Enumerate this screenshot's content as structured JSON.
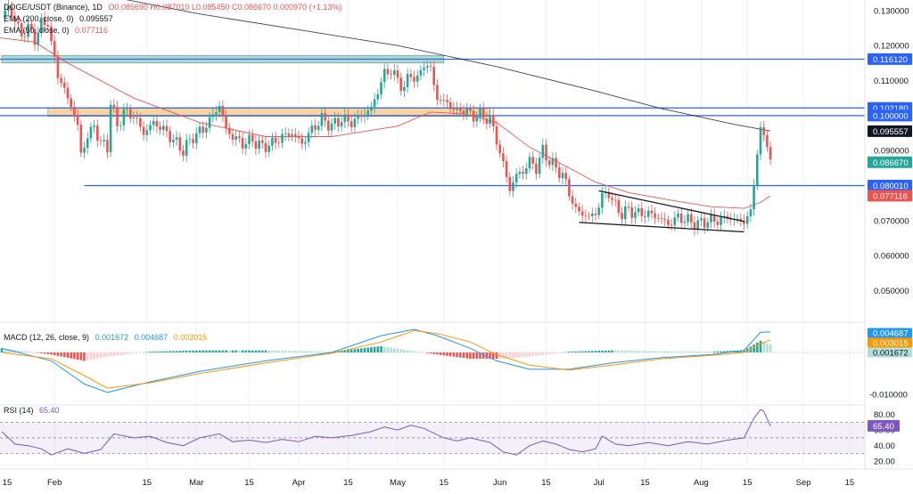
{
  "header": {
    "symbol": "DOGE/USDT (Binance), 1D",
    "ohlc": "O0.085690  H0.087010  L0.085450  C0.086670  0.000970 (+1.13%)",
    "ema200_label": "EMA (200, close, 0)",
    "ema200_value": "0.095557",
    "ema50_label": "EMA (50, close, 0)",
    "ema50_value": "0.077116"
  },
  "macd": {
    "label": "MACD (12, 26, close, 9)",
    "v1": "0.001672",
    "v2": "0.004687",
    "v3": "0.003015"
  },
  "rsi": {
    "label": "RSI (14)",
    "value": "65.40"
  },
  "colors": {
    "up": "#26a69a",
    "down": "#ef5350",
    "level": "#2962ff",
    "ema200": "#131722",
    "ema50": "#ef5350",
    "macd": "#2196f3",
    "signal": "#ff9800",
    "rsi": "#7e57c2",
    "zone_orange": "#f7c57c",
    "zone_teal": "#8fcdc3"
  },
  "chart_data": {
    "type": "candlestick",
    "x_ticks": [
      "15",
      "Feb",
      "15",
      "Mar",
      "15",
      "Apr",
      "15",
      "May",
      "15",
      "Jun",
      "15",
      "Jul",
      "15",
      "Aug",
      "15",
      "Sep",
      "15"
    ],
    "price_ticks": [
      "0.130000",
      "0.120000",
      "0.110000",
      "0.100000",
      "0.090000",
      "0.080000",
      "0.070000",
      "0.060000",
      "0.050000"
    ],
    "price_ylim": [
      0.041,
      0.133
    ],
    "levels": [
      {
        "value": 0.11612,
        "label": "0.116120"
      },
      {
        "value": 0.10218,
        "label": "0.102180"
      },
      {
        "value": 0.1,
        "label": "0.100000"
      },
      {
        "value": 0.08001,
        "label": "0.080010"
      }
    ],
    "badges": [
      {
        "label": "0.095557",
        "value": 0.095557,
        "color": "#131722"
      },
      {
        "label": "0.086670",
        "value": 0.08667,
        "color": "#26a69a"
      },
      {
        "label": "0.077116",
        "value": 0.077116,
        "color": "#ef5350"
      }
    ],
    "zones": [
      {
        "from_day": 0,
        "to_day": 134,
        "low": 0.115,
        "high": 0.1172,
        "color": "#8fcdc3"
      },
      {
        "from_day": 14,
        "to_day": 148,
        "low": 0.0998,
        "high": 0.1021,
        "color": "#f7c57c"
      }
    ],
    "close_path": [
      [
        0,
        0.128
      ],
      [
        2,
        0.131
      ],
      [
        4,
        0.127
      ],
      [
        6,
        0.123
      ],
      [
        8,
        0.125
      ],
      [
        10,
        0.122
      ],
      [
        12,
        0.126
      ],
      [
        14,
        0.127
      ],
      [
        15,
        0.12
      ],
      [
        17,
        0.112
      ],
      [
        19,
        0.107
      ],
      [
        21,
        0.103
      ],
      [
        23,
        0.097
      ],
      [
        24,
        0.089
      ],
      [
        26,
        0.094
      ],
      [
        28,
        0.097
      ],
      [
        30,
        0.092
      ],
      [
        32,
        0.091
      ],
      [
        33,
        0.104
      ],
      [
        35,
        0.097
      ],
      [
        37,
        0.101
      ],
      [
        40,
        0.1
      ],
      [
        43,
        0.095
      ],
      [
        46,
        0.098
      ],
      [
        49,
        0.096
      ],
      [
        52,
        0.093
      ],
      [
        55,
        0.09
      ],
      [
        58,
        0.094
      ],
      [
        61,
        0.096
      ],
      [
        64,
        0.1
      ],
      [
        66,
        0.103
      ],
      [
        68,
        0.096
      ],
      [
        70,
        0.094
      ],
      [
        73,
        0.092
      ],
      [
        76,
        0.093
      ],
      [
        79,
        0.091
      ],
      [
        82,
        0.092
      ],
      [
        85,
        0.094
      ],
      [
        88,
        0.095
      ],
      [
        91,
        0.092
      ],
      [
        94,
        0.096
      ],
      [
        97,
        0.099
      ],
      [
        100,
        0.097
      ],
      [
        103,
        0.099
      ],
      [
        106,
        0.098
      ],
      [
        109,
        0.1
      ],
      [
        112,
        0.102
      ],
      [
        114,
        0.107
      ],
      [
        116,
        0.112
      ],
      [
        118,
        0.113
      ],
      [
        120,
        0.11
      ],
      [
        122,
        0.108
      ],
      [
        124,
        0.112
      ],
      [
        126,
        0.11
      ],
      [
        128,
        0.115
      ],
      [
        130,
        0.113
      ],
      [
        132,
        0.105
      ],
      [
        134,
        0.104
      ],
      [
        136,
        0.103
      ],
      [
        138,
        0.101
      ],
      [
        140,
        0.102
      ],
      [
        142,
        0.1
      ],
      [
        145,
        0.1
      ],
      [
        148,
        0.099
      ],
      [
        150,
        0.093
      ],
      [
        152,
        0.086
      ],
      [
        154,
        0.079
      ],
      [
        156,
        0.083
      ],
      [
        158,
        0.084
      ],
      [
        160,
        0.087
      ],
      [
        162,
        0.085
      ],
      [
        164,
        0.09
      ],
      [
        166,
        0.087
      ],
      [
        168,
        0.085
      ],
      [
        170,
        0.083
      ],
      [
        172,
        0.078
      ],
      [
        174,
        0.073
      ],
      [
        176,
        0.072
      ],
      [
        178,
        0.071
      ],
      [
        180,
        0.072
      ],
      [
        182,
        0.077
      ],
      [
        184,
        0.078
      ],
      [
        186,
        0.074
      ],
      [
        188,
        0.072
      ],
      [
        190,
        0.073
      ],
      [
        193,
        0.072
      ],
      [
        196,
        0.072
      ],
      [
        199,
        0.071
      ],
      [
        202,
        0.069
      ],
      [
        205,
        0.071
      ],
      [
        208,
        0.07
      ],
      [
        211,
        0.069
      ],
      [
        214,
        0.07
      ],
      [
        217,
        0.07
      ],
      [
        220,
        0.071
      ],
      [
        223,
        0.07
      ],
      [
        225,
        0.07
      ],
      [
        227,
        0.072
      ],
      [
        228,
        0.081
      ],
      [
        229,
        0.09
      ],
      [
        230,
        0.095
      ],
      [
        231,
        0.094
      ],
      [
        232,
        0.093
      ],
      [
        233,
        0.087
      ]
    ],
    "ema200": [
      [
        -8,
        0.148
      ],
      [
        10,
        0.1385
      ],
      [
        30,
        0.1345
      ],
      [
        60,
        0.129
      ],
      [
        90,
        0.1245
      ],
      [
        120,
        0.12
      ],
      [
        150,
        0.114
      ],
      [
        180,
        0.107
      ],
      [
        200,
        0.102
      ],
      [
        222,
        0.0975
      ],
      [
        233,
        0.0956
      ]
    ],
    "ema50": [
      [
        -8,
        0.123
      ],
      [
        10,
        0.121
      ],
      [
        20,
        0.115
      ],
      [
        40,
        0.105
      ],
      [
        60,
        0.098
      ],
      [
        80,
        0.094
      ],
      [
        100,
        0.094
      ],
      [
        120,
        0.097
      ],
      [
        130,
        0.101
      ],
      [
        140,
        0.1005
      ],
      [
        150,
        0.098
      ],
      [
        160,
        0.091
      ],
      [
        170,
        0.086
      ],
      [
        180,
        0.081
      ],
      [
        190,
        0.078
      ],
      [
        205,
        0.0755
      ],
      [
        215,
        0.074
      ],
      [
        225,
        0.0735
      ],
      [
        230,
        0.0752
      ],
      [
        233,
        0.0771
      ]
    ],
    "channel_upper": [
      [
        181,
        0.0785
      ],
      [
        225,
        0.0698
      ]
    ],
    "channel_lower": [
      [
        175,
        0.0695
      ],
      [
        225,
        0.0668
      ]
    ],
    "macd_ticks": [
      "0.000000",
      "-0.010000"
    ],
    "macd_ylim": [
      -0.0125,
      0.0072
    ],
    "macd_line": [
      [
        0,
        0.001
      ],
      [
        15,
        -0.002
      ],
      [
        25,
        -0.0075
      ],
      [
        32,
        -0.0095
      ],
      [
        45,
        -0.007
      ],
      [
        60,
        -0.0045
      ],
      [
        80,
        -0.002
      ],
      [
        100,
        0.0
      ],
      [
        115,
        0.004
      ],
      [
        125,
        0.0055
      ],
      [
        132,
        0.004
      ],
      [
        142,
        0.001
      ],
      [
        150,
        -0.002
      ],
      [
        160,
        -0.004
      ],
      [
        172,
        -0.004
      ],
      [
        185,
        -0.0025
      ],
      [
        200,
        -0.0012
      ],
      [
        215,
        -0.0005
      ],
      [
        225,
        0.0005
      ],
      [
        230,
        0.0048
      ],
      [
        233,
        0.0049
      ]
    ],
    "signal_line": [
      [
        0,
        0.0
      ],
      [
        15,
        -0.0015
      ],
      [
        25,
        -0.0055
      ],
      [
        32,
        -0.0085
      ],
      [
        45,
        -0.0072
      ],
      [
        60,
        -0.005
      ],
      [
        80,
        -0.0025
      ],
      [
        100,
        -0.0002
      ],
      [
        115,
        0.0025
      ],
      [
        125,
        0.0052
      ],
      [
        132,
        0.0045
      ],
      [
        142,
        0.0025
      ],
      [
        150,
        -0.0005
      ],
      [
        160,
        -0.003
      ],
      [
        172,
        -0.0042
      ],
      [
        185,
        -0.003
      ],
      [
        200,
        -0.0015
      ],
      [
        215,
        -0.0007
      ],
      [
        225,
        0.0
      ],
      [
        230,
        0.002
      ],
      [
        233,
        0.003
      ]
    ],
    "rsi_ticks": [
      "80.00",
      "60.00",
      "40.00",
      "20.00"
    ],
    "rsi_ylim": [
      10,
      92
    ],
    "rsi_bands": [
      30,
      50,
      70
    ],
    "rsi_line": [
      [
        0,
        58
      ],
      [
        4,
        42
      ],
      [
        8,
        40
      ],
      [
        12,
        36
      ],
      [
        15,
        28
      ],
      [
        20,
        36
      ],
      [
        25,
        30
      ],
      [
        30,
        35
      ],
      [
        34,
        55
      ],
      [
        40,
        50
      ],
      [
        45,
        52
      ],
      [
        50,
        44
      ],
      [
        55,
        40
      ],
      [
        60,
        50
      ],
      [
        66,
        55
      ],
      [
        70,
        45
      ],
      [
        75,
        47
      ],
      [
        80,
        44
      ],
      [
        85,
        48
      ],
      [
        90,
        45
      ],
      [
        95,
        52
      ],
      [
        100,
        50
      ],
      [
        106,
        53
      ],
      [
        112,
        58
      ],
      [
        116,
        64
      ],
      [
        120,
        60
      ],
      [
        124,
        66
      ],
      [
        128,
        62
      ],
      [
        130,
        58
      ],
      [
        134,
        50
      ],
      [
        138,
        46
      ],
      [
        142,
        50
      ],
      [
        148,
        44
      ],
      [
        152,
        32
      ],
      [
        156,
        28
      ],
      [
        160,
        40
      ],
      [
        164,
        46
      ],
      [
        168,
        42
      ],
      [
        172,
        35
      ],
      [
        176,
        32
      ],
      [
        180,
        36
      ],
      [
        182,
        52
      ],
      [
        186,
        42
      ],
      [
        190,
        40
      ],
      [
        196,
        44
      ],
      [
        202,
        40
      ],
      [
        208,
        45
      ],
      [
        214,
        42
      ],
      [
        220,
        47
      ],
      [
        225,
        50
      ],
      [
        228,
        75
      ],
      [
        230,
        86
      ],
      [
        231,
        84
      ],
      [
        233,
        65
      ]
    ]
  }
}
